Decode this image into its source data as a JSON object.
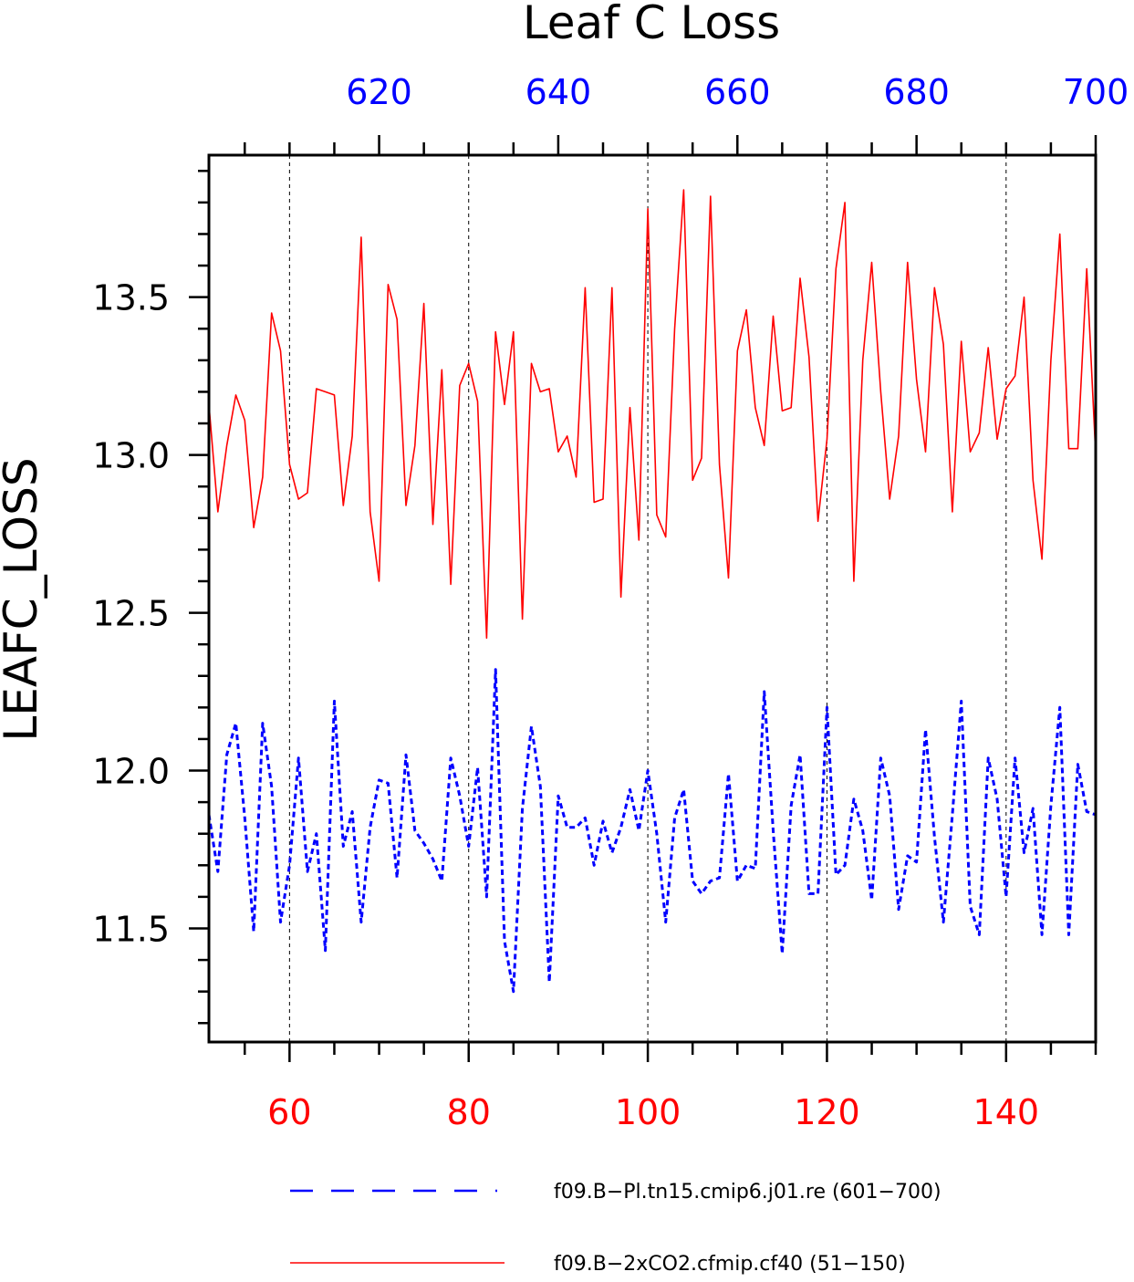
{
  "chart_data": {
    "type": "line",
    "title": "Leaf C Loss",
    "ylabel": "LEAFC_LOSS",
    "xlabel": "",
    "xlim": [
      51,
      150
    ],
    "ylim": [
      11.14,
      13.95
    ],
    "x_ticks": [
      60,
      80,
      100,
      120,
      140
    ],
    "x_top_ticks": [
      620,
      640,
      660,
      680,
      700
    ],
    "x_top_offset": 550,
    "y_ticks": [
      11.5,
      12.0,
      12.5,
      13.0,
      13.5
    ],
    "y_tick_labels": [
      "11.5",
      "12.0",
      "12.5",
      "13.0",
      "13.5"
    ],
    "grid": "vertical dashed at major x ticks",
    "legend_position": "bottom",
    "x": [
      51,
      52,
      53,
      54,
      55,
      56,
      57,
      58,
      59,
      60,
      61,
      62,
      63,
      64,
      65,
      66,
      67,
      68,
      69,
      70,
      71,
      72,
      73,
      74,
      75,
      76,
      77,
      78,
      79,
      80,
      81,
      82,
      83,
      84,
      85,
      86,
      87,
      88,
      89,
      90,
      91,
      92,
      93,
      94,
      95,
      96,
      97,
      98,
      99,
      100,
      101,
      102,
      103,
      104,
      105,
      106,
      107,
      108,
      109,
      110,
      111,
      112,
      113,
      114,
      115,
      116,
      117,
      118,
      119,
      120,
      121,
      122,
      123,
      124,
      125,
      126,
      127,
      128,
      129,
      130,
      131,
      132,
      133,
      134,
      135,
      136,
      137,
      138,
      139,
      140,
      141,
      142,
      143,
      144,
      145,
      146,
      147,
      148,
      149,
      150
    ],
    "series": [
      {
        "name": "f09.B−Pl.tn15.cmip6.j01.re (601−700)",
        "color": "#0000ff",
        "style": "dashed",
        "values": [
          11.86,
          11.68,
          12.05,
          12.15,
          11.85,
          11.49,
          12.15,
          11.95,
          11.52,
          11.7,
          12.04,
          11.68,
          11.8,
          11.43,
          12.22,
          11.76,
          11.87,
          11.52,
          11.82,
          11.97,
          11.96,
          11.66,
          12.05,
          11.81,
          11.77,
          11.72,
          11.65,
          12.04,
          11.92,
          11.76,
          12.01,
          11.6,
          12.32,
          11.46,
          11.3,
          11.88,
          12.14,
          11.95,
          11.33,
          11.92,
          11.82,
          11.82,
          11.85,
          11.7,
          11.84,
          11.74,
          11.82,
          11.94,
          11.81,
          12.0,
          11.8,
          11.52,
          11.85,
          11.94,
          11.65,
          11.61,
          11.65,
          11.66,
          11.99,
          11.65,
          11.7,
          11.69,
          12.25,
          11.81,
          11.42,
          11.89,
          12.05,
          11.61,
          11.61,
          12.2,
          11.67,
          11.7,
          11.91,
          11.81,
          11.59,
          12.04,
          11.92,
          11.56,
          11.73,
          11.71,
          12.13,
          11.79,
          11.52,
          11.86,
          12.22,
          11.57,
          11.48,
          12.04,
          11.91,
          11.6,
          12.04,
          11.74,
          11.88,
          11.48,
          11.89,
          12.2,
          11.48,
          12.02,
          11.87,
          11.86
        ]
      },
      {
        "name": "f09.B−2xCO2.cfmip.cf40 (51−150)",
        "color": "#ff0000",
        "style": "solid",
        "values": [
          13.16,
          12.82,
          13.03,
          13.19,
          13.11,
          12.77,
          12.93,
          13.45,
          13.33,
          12.97,
          12.86,
          12.88,
          13.21,
          13.2,
          13.19,
          12.84,
          13.06,
          13.69,
          12.82,
          12.6,
          13.54,
          13.43,
          12.84,
          13.03,
          13.48,
          12.78,
          13.27,
          12.59,
          13.22,
          13.29,
          13.17,
          12.42,
          13.39,
          13.16,
          13.39,
          12.48,
          13.29,
          13.2,
          13.21,
          13.01,
          13.06,
          12.93,
          13.53,
          12.85,
          12.86,
          13.53,
          12.55,
          13.15,
          12.73,
          13.78,
          12.81,
          12.74,
          13.4,
          13.84,
          12.92,
          12.99,
          13.82,
          12.97,
          12.61,
          13.33,
          13.46,
          13.15,
          13.03,
          13.44,
          13.14,
          13.15,
          13.56,
          13.31,
          12.79,
          13.05,
          13.59,
          13.8,
          12.6,
          13.3,
          13.61,
          13.2,
          12.86,
          13.06,
          13.61,
          13.24,
          13.01,
          13.53,
          13.35,
          12.82,
          13.36,
          13.01,
          13.07,
          13.34,
          13.05,
          13.21,
          13.25,
          13.5,
          12.92,
          12.67,
          13.3,
          13.7,
          13.02,
          13.02,
          13.59,
          13.0
        ]
      }
    ]
  }
}
